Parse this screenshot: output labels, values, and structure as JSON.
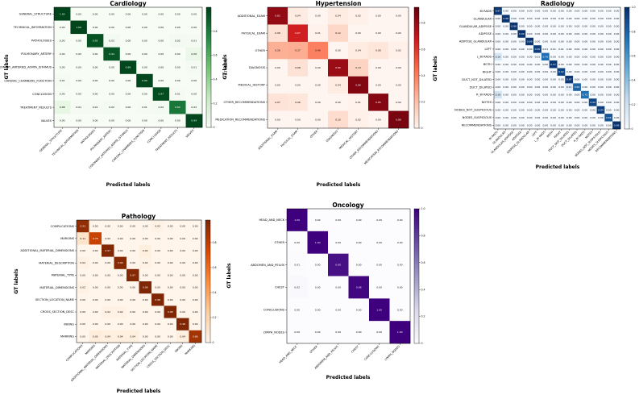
{
  "chart_data": [
    {
      "type": "heatmap",
      "title": "Cardiology",
      "xlabel": "Predicted labels",
      "ylabel": "GT labels",
      "colorbar_label": "GT labels",
      "colormap": "greens",
      "vmax": 1.0,
      "colorbar_ticks": [
        "0",
        "0.2",
        "0.4",
        "0.6",
        "0.8"
      ],
      "labels": [
        "GENERAL_STRUCTURE",
        "TECHNICAL_INFORMATION",
        "PATHOLOGIES",
        "PULMONARY_ARTERY",
        "CORONARY_ARTERIES_AORTA_ISTHMUS",
        "CARDIAC_CHAMBERS_FUNCTION",
        "CONCLUSION",
        "TREATMENT_RESULTS",
        "VALVES"
      ],
      "values": [
        [
          1.0,
          0.0,
          0.0,
          0.0,
          0.0,
          0.0,
          0.0,
          0.0,
          0.0
        ],
        [
          0.0,
          1.0,
          0.0,
          0.0,
          0.0,
          0.0,
          0.0,
          0.0,
          0.0
        ],
        [
          0.0,
          0.0,
          0.95,
          0.02,
          0.0,
          0.0,
          0.0,
          0.02,
          0.01
        ],
        [
          0.0,
          0.0,
          0.0,
          0.94,
          0.0,
          0.0,
          0.0,
          0.0,
          0.06
        ],
        [
          0.0,
          0.0,
          0.0,
          0.0,
          0.99,
          0.0,
          0.0,
          0.0,
          0.01
        ],
        [
          0.01,
          0.0,
          0.0,
          0.0,
          0.0,
          0.99,
          0.0,
          0.0,
          0.0
        ],
        [
          0.0,
          0.0,
          0.0,
          0.0,
          0.0,
          0.0,
          0.97,
          0.01,
          0.0
        ],
        [
          0.08,
          0.01,
          0.01,
          0.02,
          0.0,
          0.01,
          0.02,
          0.82,
          0.02
        ],
        [
          0.0,
          0.0,
          0.0,
          0.0,
          0.0,
          0.0,
          0.0,
          0.0,
          0.99
        ]
      ]
    },
    {
      "type": "heatmap",
      "title": "Hypertension",
      "xlabel": "Predicted labels",
      "ylabel": "GT labels",
      "colorbar_label": "",
      "colormap": "reds",
      "vmax": 0.92,
      "colorbar_ticks": [
        "0",
        "0.2",
        "0.4",
        "0.6",
        "0.8"
      ],
      "labels": [
        "ADDITIONAL_EXAM",
        "PHYSICAL_EXAM",
        "OTHER",
        "DIAGNOSIS",
        "MEDICAL_HISTORY",
        "OTHER_RECOMMENDATIONS",
        "MEDICATION_RECOMMENDATIONS"
      ],
      "values": [
        [
          0.82,
          0.04,
          0.0,
          0.04,
          0.02,
          0.0,
          0.0
        ],
        [
          0.08,
          0.67,
          0.01,
          0.12,
          0.0,
          0.0,
          0.0
        ],
        [
          0.26,
          0.27,
          0.4,
          0.0,
          0.04,
          0.06,
          0.02
        ],
        [
          0.0,
          0.08,
          0.0,
          0.8,
          0.13,
          0.0,
          0.0
        ],
        [
          0.0,
          0.0,
          0.0,
          0.04,
          0.86,
          0.0,
          0.0
        ],
        [
          0.07,
          0.06,
          0.0,
          0.0,
          0.01,
          0.85,
          0.0
        ],
        [
          0.0,
          0.0,
          0.0,
          0.1,
          0.02,
          0.0,
          0.88
        ]
      ]
    },
    {
      "type": "heatmap",
      "title": "Radiology",
      "xlabel": "Predicted labels",
      "ylabel": "GT labels",
      "colorbar_label": "",
      "colormap": "blues",
      "vmax": 1.0,
      "colorbar_ticks": [
        "0",
        "0.2",
        "0.4",
        "0.6",
        "0.8",
        "1.0"
      ],
      "labels": [
        "BI RADS",
        "GLANDULAR",
        "GLANDULAR_ADIPOSE",
        "ADIPOSE",
        "ADIPOSE_GLANDULAR",
        "LEFT",
        "L_BI RADS",
        "BOTH",
        "RIGHT",
        "DUCT_NOT_DILATED",
        "DUCT_DILATED",
        "R_BI RADS",
        "NOTES",
        "NODES_NOT_SUSPICIOUS",
        "NODES_SUSPICIOUS",
        "RECOMMENDATIONS"
      ],
      "values": [
        [
          0.97,
          0.0,
          0.0,
          0.0,
          0.0,
          0.0,
          0.0,
          0.0,
          0.0,
          0.0,
          0.0,
          0.0,
          0.0,
          0.0,
          0.0,
          0.0
        ],
        [
          0.0,
          0.98,
          0.0,
          0.0,
          0.0,
          0.0,
          0.0,
          0.0,
          0.0,
          0.0,
          0.0,
          0.0,
          0.0,
          0.0,
          0.0,
          0.0
        ],
        [
          0.0,
          0.0,
          0.98,
          0.0,
          0.0,
          0.0,
          0.0,
          0.0,
          0.0,
          0.0,
          0.0,
          0.0,
          0.0,
          0.0,
          0.0,
          0.0
        ],
        [
          0.0,
          0.0,
          0.0,
          0.99,
          0.0,
          0.0,
          0.0,
          0.0,
          0.0,
          0.0,
          0.0,
          0.0,
          0.0,
          0.0,
          0.0,
          0.0
        ],
        [
          0.0,
          0.0,
          0.0,
          0.0,
          0.98,
          0.0,
          0.0,
          0.0,
          0.0,
          0.0,
          0.0,
          0.0,
          0.0,
          0.0,
          0.0,
          0.0
        ],
        [
          0.0,
          0.0,
          0.0,
          0.0,
          0.0,
          0.95,
          0.01,
          0.01,
          0.01,
          0.0,
          0.0,
          0.0,
          0.0,
          0.0,
          0.0,
          0.0
        ],
        [
          0.16,
          0.0,
          0.0,
          0.0,
          0.0,
          0.01,
          0.76,
          0.0,
          0.0,
          0.0,
          0.0,
          0.0,
          0.0,
          0.0,
          0.0,
          0.0
        ],
        [
          0.0,
          0.0,
          0.0,
          0.0,
          0.0,
          0.0,
          0.0,
          0.97,
          0.0,
          0.0,
          0.0,
          0.0,
          0.0,
          0.0,
          0.0,
          0.0
        ],
        [
          0.0,
          0.0,
          0.0,
          0.0,
          0.0,
          0.0,
          0.0,
          0.0,
          0.92,
          0.0,
          0.0,
          0.0,
          0.0,
          0.0,
          0.0,
          0.0
        ],
        [
          0.0,
          0.0,
          0.0,
          0.0,
          0.0,
          0.0,
          0.0,
          0.0,
          0.0,
          0.97,
          0.0,
          0.0,
          0.0,
          0.0,
          0.0,
          0.0
        ],
        [
          0.0,
          0.0,
          0.0,
          0.0,
          0.0,
          0.0,
          0.0,
          0.0,
          0.0,
          0.11,
          0.8,
          0.0,
          0.0,
          0.0,
          0.0,
          0.0
        ],
        [
          0.18,
          0.0,
          0.0,
          0.0,
          0.0,
          0.0,
          0.0,
          0.0,
          0.0,
          0.0,
          0.0,
          0.75,
          0.0,
          0.0,
          0.0,
          0.0
        ],
        [
          0.0,
          0.0,
          0.0,
          0.0,
          0.0,
          0.0,
          0.0,
          0.0,
          0.0,
          0.0,
          0.0,
          0.0,
          0.92,
          0.0,
          0.0,
          0.0
        ],
        [
          0.0,
          0.0,
          0.0,
          0.0,
          0.0,
          0.0,
          0.0,
          0.0,
          0.0,
          0.0,
          0.0,
          0.0,
          0.0,
          0.94,
          0.0,
          0.0
        ],
        [
          0.0,
          0.0,
          0.0,
          0.0,
          0.0,
          0.0,
          0.0,
          0.0,
          0.0,
          0.0,
          0.0,
          0.0,
          0.0,
          0.0,
          0.86,
          0.0
        ],
        [
          0.0,
          0.0,
          0.0,
          0.0,
          0.0,
          0.0,
          0.0,
          0.0,
          0.0,
          0.0,
          0.0,
          0.0,
          0.0,
          0.0,
          0.0,
          0.99
        ]
      ]
    },
    {
      "type": "heatmap",
      "title": "Pathology",
      "xlabel": "Predicted labels",
      "ylabel": "GT labels",
      "colorbar_label": "",
      "colormap": "oranges",
      "vmax": 0.98,
      "colorbar_ticks": [
        "0",
        "0.2",
        "0.4",
        "0.6",
        "0.8"
      ],
      "labels": [
        "COMPLICATIONS",
        "MARGINS",
        "ADDITIONAL_MATERIAL_DIMENSIONS",
        "MATERIAL_DESCRIPTION",
        "MATERIAL_TYPE",
        "MATERIAL_DIMENSIONS",
        "SECTION_LOCATION_NAME",
        "CROSS_SECTION_DESC",
        "INKING",
        "MARKING"
      ],
      "values": [
        [
          0.93,
          0.0,
          0.0,
          0.0,
          0.0,
          0.0,
          0.02,
          0.0,
          0.0,
          0.0
        ],
        [
          0.11,
          0.78,
          0.0,
          0.0,
          0.0,
          0.0,
          0.0,
          0.0,
          0.0,
          0.0
        ],
        [
          0.0,
          0.0,
          0.97,
          0.0,
          0.0,
          0.04,
          0.0,
          0.0,
          0.0,
          0.0
        ],
        [
          0.02,
          0.0,
          0.0,
          0.96,
          0.0,
          0.02,
          0.0,
          0.0,
          0.0,
          0.0
        ],
        [
          0.0,
          0.0,
          0.0,
          0.0,
          0.97,
          0.0,
          0.0,
          0.0,
          0.0,
          0.0
        ],
        [
          0.02,
          0.0,
          0.0,
          0.0,
          0.0,
          0.98,
          0.0,
          0.0,
          0.0,
          0.0
        ],
        [
          0.0,
          0.0,
          0.0,
          0.0,
          0.0,
          0.0,
          0.98,
          0.0,
          0.0,
          0.0
        ],
        [
          0.0,
          0.0,
          0.02,
          0.02,
          0.0,
          0.0,
          0.0,
          0.98,
          0.0,
          0.0
        ],
        [
          0.0,
          0.0,
          0.0,
          0.0,
          0.0,
          0.0,
          0.0,
          0.0,
          0.98,
          0.0
        ],
        [
          0.0,
          0.05,
          0.04,
          0.04,
          0.04,
          0.0,
          0.0,
          0.0,
          0.04,
          0.88
        ]
      ]
    },
    {
      "type": "heatmap",
      "title": "Oncology",
      "xlabel": "Predicted labels",
      "ylabel": "GT labels",
      "colorbar_label": "",
      "colormap": "purples",
      "vmax": 1.0,
      "colorbar_ticks": [
        "0",
        "0.2",
        "0.4",
        "0.6",
        "0.8",
        "1.0"
      ],
      "labels": [
        "HEAD_AND_NECK",
        "OTHER",
        "ABDOMEN_AND_PELVIS",
        "CHEST",
        "CONCLUSIONS",
        "LYMPH_NODES"
      ],
      "values": [
        [
          1.0,
          0.0,
          0.0,
          0.0,
          0.0,
          0.0
        ],
        [
          0.0,
          1.0,
          0.0,
          0.0,
          0.0,
          0.0
        ],
        [
          0.01,
          0.0,
          0.95,
          0.0,
          0.0,
          0.0
        ],
        [
          0.02,
          0.0,
          0.0,
          0.98,
          0.0,
          0.0
        ],
        [
          0.0,
          0.0,
          0.0,
          0.0,
          1.0,
          0.0
        ],
        [
          0.0,
          0.0,
          0.0,
          0.0,
          0.0,
          1.0
        ]
      ]
    }
  ]
}
